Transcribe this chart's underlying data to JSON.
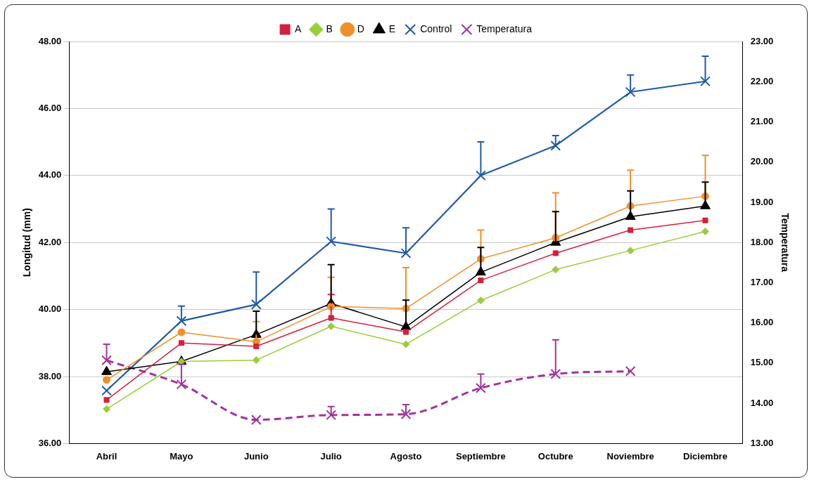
{
  "chart_data": {
    "type": "line",
    "ylabel": "Longitud (mm)",
    "y2label": "Temperatura",
    "categories": [
      "Abril",
      "Mayo",
      "Junio",
      "Julio",
      "Agosto",
      "Septiembre",
      "Octubre",
      "Noviembre",
      "Diciembre"
    ],
    "series": [
      {
        "name": "A",
        "color": "#d4203c",
        "marker": "square",
        "values": [
          37.3,
          39.0,
          38.9,
          39.75,
          39.33,
          40.87,
          41.68,
          42.37,
          42.66
        ],
        "errors": [
          null,
          null,
          null,
          [
            39.75,
            40.45
          ],
          null,
          null,
          null,
          null,
          null
        ]
      },
      {
        "name": "B",
        "color": "#9acd3c",
        "marker": "diamond",
        "values": [
          37.03,
          38.45,
          38.49,
          39.5,
          38.96,
          40.27,
          41.19,
          41.76,
          42.33
        ]
      },
      {
        "name": "D",
        "color": "#f0902a",
        "marker": "circle",
        "values": [
          37.9,
          39.32,
          39.04,
          40.09,
          40.03,
          41.51,
          42.14,
          43.09,
          43.38
        ],
        "errors": [
          null,
          null,
          [
            39.04,
            39.64
          ],
          [
            40.09,
            40.96
          ],
          [
            40.03,
            41.25
          ],
          [
            41.51,
            42.37
          ],
          [
            42.14,
            43.48
          ],
          [
            43.09,
            44.16
          ],
          [
            43.38,
            44.6
          ]
        ]
      },
      {
        "name": "E",
        "color": "#000000",
        "marker": "triangle",
        "values": [
          38.14,
          38.45,
          39.25,
          40.18,
          39.48,
          41.11,
          42.0,
          42.77,
          43.09
        ],
        "errors": [
          null,
          null,
          [
            39.25,
            39.95
          ],
          [
            40.18,
            41.34
          ],
          [
            39.48,
            40.28
          ],
          [
            41.11,
            41.85
          ],
          [
            42.0,
            42.92
          ],
          [
            42.77,
            43.54
          ],
          [
            43.09,
            43.8
          ]
        ]
      },
      {
        "name": "Control",
        "color": "#1f5aa6",
        "marker": "cross",
        "values": [
          37.58,
          39.66,
          40.15,
          42.03,
          41.68,
          44.0,
          44.89,
          46.49,
          46.81
        ],
        "errors": [
          null,
          [
            39.66,
            40.1
          ],
          [
            40.15,
            41.12
          ],
          [
            42.03,
            43.0
          ],
          [
            41.68,
            42.44
          ],
          [
            44.0,
            45.0
          ],
          [
            44.89,
            45.19
          ],
          [
            46.49,
            47.0
          ],
          [
            46.81,
            47.56
          ]
        ]
      },
      {
        "name": "Temperatura",
        "color": "#a0349a",
        "marker": "cross",
        "line_style": "dashed",
        "axis": "y2",
        "values": [
          15.07,
          14.47,
          13.59,
          13.71,
          13.73,
          14.38,
          14.73,
          14.8,
          null
        ],
        "errors": [
          [
            15.07,
            15.47
          ],
          [
            14.47,
            14.97
          ],
          null,
          [
            13.71,
            13.92
          ],
          [
            13.73,
            13.97
          ],
          [
            14.38,
            14.73
          ],
          [
            14.73,
            15.58
          ],
          null,
          null
        ]
      }
    ],
    "ylim": [
      36,
      48
    ],
    "yticks": [
      {
        "value": 36,
        "label": "36.00"
      },
      {
        "value": 38,
        "label": "38.00"
      },
      {
        "value": 40,
        "label": "40.00"
      },
      {
        "value": 42,
        "label": "42.00"
      },
      {
        "value": 44,
        "label": "44.00"
      },
      {
        "value": 46,
        "label": "46.00"
      },
      {
        "value": 48,
        "label": "48.00"
      }
    ],
    "y2lim": [
      13,
      23
    ],
    "y2ticks": [
      {
        "value": 13,
        "label": "13.00"
      },
      {
        "value": 14,
        "label": "14.00"
      },
      {
        "value": 15,
        "label": "15.00"
      },
      {
        "value": 16,
        "label": "16.00"
      },
      {
        "value": 17,
        "label": "17.00"
      },
      {
        "value": 18,
        "label": "18.00"
      },
      {
        "value": 19,
        "label": "19.00"
      },
      {
        "value": 20,
        "label": "20.00"
      },
      {
        "value": 21,
        "label": "21.00"
      },
      {
        "value": 22,
        "label": "22.00"
      },
      {
        "value": 23,
        "label": "23.00"
      }
    ],
    "grid": "y",
    "legend": "top"
  }
}
